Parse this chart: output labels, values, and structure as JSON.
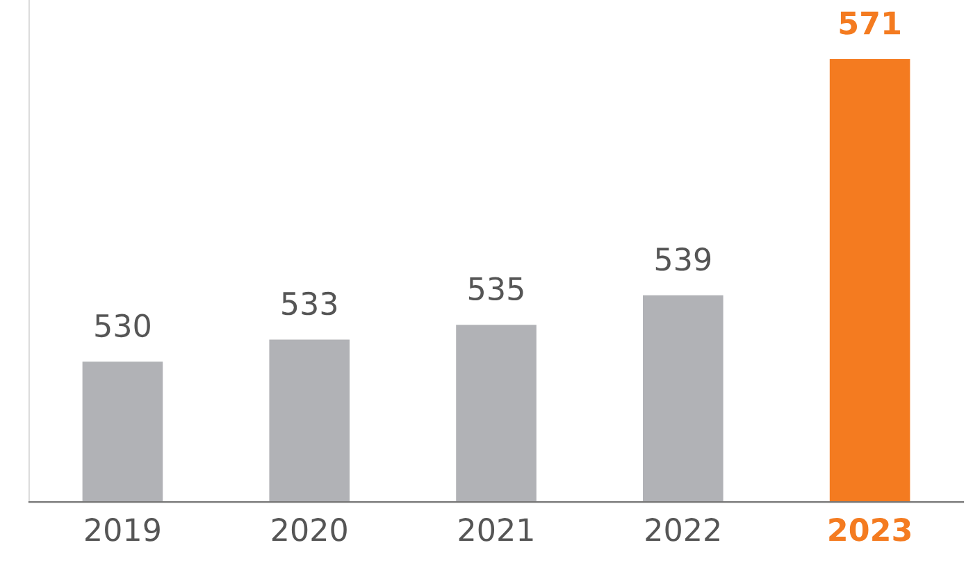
{
  "chart_data": {
    "type": "bar",
    "categories": [
      "2019",
      "2020",
      "2021",
      "2022",
      "2023"
    ],
    "values": [
      530,
      533,
      535,
      539,
      571
    ],
    "colors": [
      "#b1b2b6",
      "#b1b2b6",
      "#b1b2b6",
      "#b1b2b6",
      "#f47b20"
    ],
    "ylim": [
      511,
      579
    ],
    "tick_labels": "x",
    "data_labels": true,
    "grid": false,
    "legend": false
  }
}
